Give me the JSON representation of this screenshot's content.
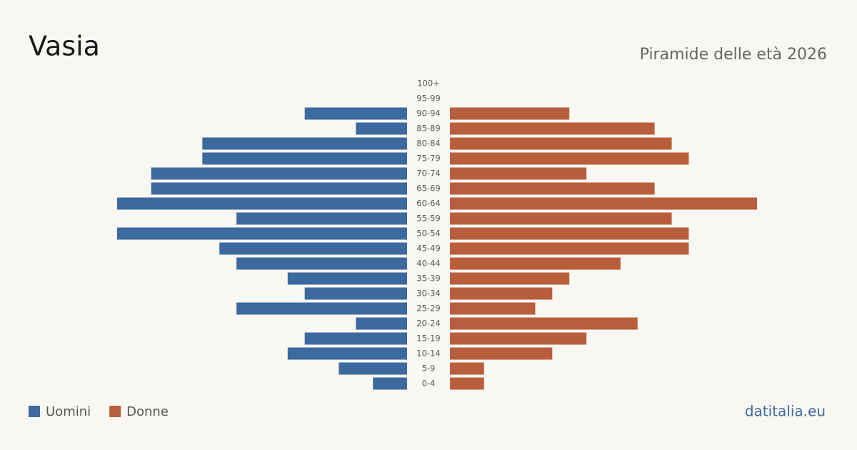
{
  "chart_data": {
    "type": "pyramid",
    "title": "Vasia",
    "subtitle": "Piramide delle età 2026",
    "categories": [
      "100+",
      "95-99",
      "90-94",
      "85-89",
      "80-84",
      "75-79",
      "70-74",
      "65-69",
      "60-64",
      "55-59",
      "50-54",
      "45-49",
      "40-44",
      "35-39",
      "30-34",
      "25-29",
      "20-24",
      "15-19",
      "10-14",
      "5-9",
      "0-4"
    ],
    "series": [
      {
        "name": "Uomini",
        "color": "#3d6a9e",
        "values": [
          0,
          0,
          6,
          3,
          12,
          12,
          15,
          15,
          17,
          10,
          17,
          11,
          10,
          7,
          6,
          10,
          3,
          6,
          7,
          4,
          2
        ]
      },
      {
        "name": "Donne",
        "color": "#b95e3c",
        "values": [
          0,
          0,
          7,
          12,
          13,
          14,
          8,
          12,
          18,
          13,
          14,
          14,
          10,
          7,
          6,
          5,
          11,
          8,
          6,
          2,
          2
        ]
      }
    ],
    "source": "datitalia.eu"
  }
}
